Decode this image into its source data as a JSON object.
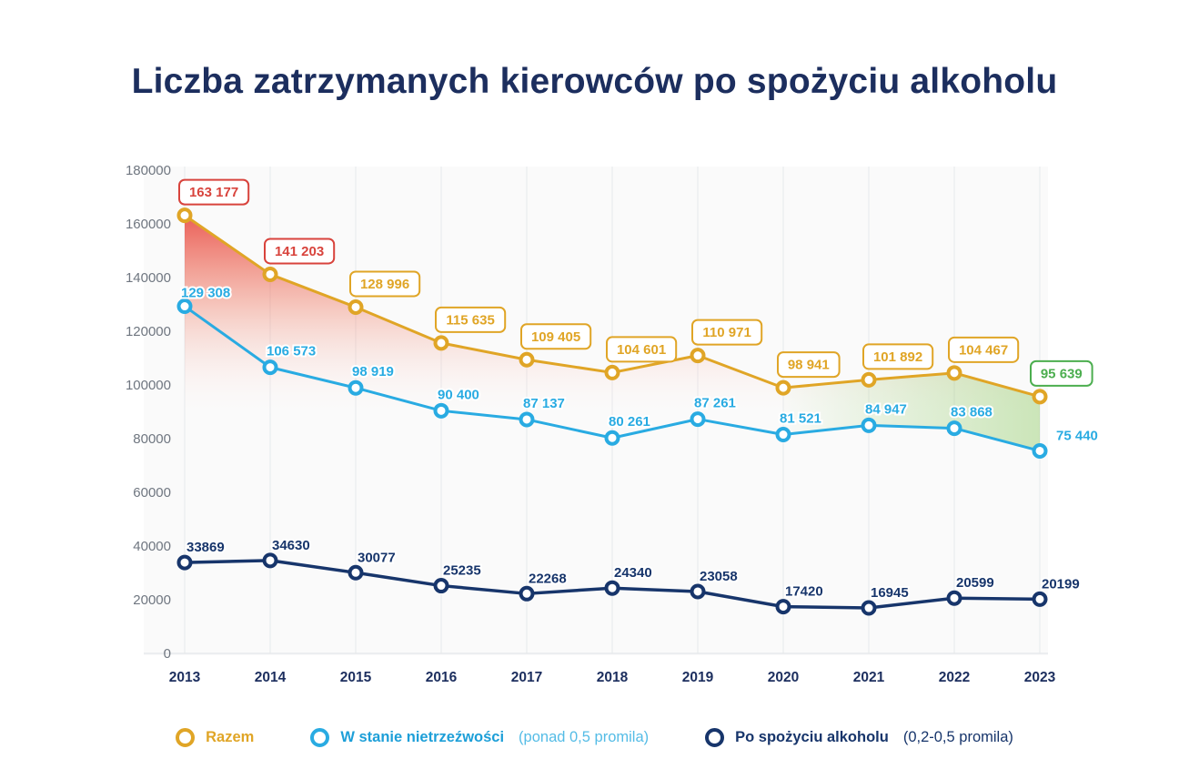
{
  "title": "Liczba zatrzymanych kierowców po spożyciu alkoholu",
  "colors": {
    "title": "#1c2e5e",
    "gold": "#e0a526",
    "blue": "#29abe2",
    "navy": "#17356b",
    "red": "#d8433c",
    "green": "#4cae4f",
    "axis_text": "#6f7680",
    "x_label": "#1c2e5e",
    "grid": "#e7e9ec",
    "plot_bg": "#fafafa"
  },
  "chart_data": {
    "type": "line",
    "title": "Liczba zatrzymanych kierowców po spożyciu alkoholu",
    "x": [
      "2013",
      "2014",
      "2015",
      "2016",
      "2017",
      "2018",
      "2019",
      "2020",
      "2021",
      "2022",
      "2023"
    ],
    "ylim": [
      0,
      180000
    ],
    "ytick_step": 20000,
    "yticks": [
      0,
      20000,
      40000,
      60000,
      80000,
      100000,
      120000,
      140000,
      160000,
      180000
    ],
    "grid": "vertical",
    "legend_position": "bottom",
    "series": [
      {
        "name": "Razem",
        "color": "gold",
        "values": [
          163177,
          141203,
          128996,
          115635,
          109405,
          104601,
          110971,
          98941,
          101892,
          104467,
          95639
        ],
        "labels": [
          "163 177",
          "141 203",
          "128 996",
          "115 635",
          "109 405",
          "104 601",
          "110 971",
          "98 941",
          "101 892",
          "104 467",
          "95 639"
        ],
        "label_style": "boxed",
        "box_colors": [
          "red",
          "red",
          "gold",
          "gold",
          "gold",
          "gold",
          "gold",
          "gold",
          "gold",
          "gold",
          "green"
        ]
      },
      {
        "name": "W stanie nietrzeźwości (ponad 0,5 promila)",
        "color": "blue",
        "values": [
          129308,
          106573,
          98919,
          90400,
          87137,
          80261,
          87261,
          81521,
          84947,
          83868,
          75440
        ],
        "labels": [
          "129 308",
          "106 573",
          "98 919",
          "90 400",
          "87 137",
          "80 261",
          "87 261",
          "81 521",
          "84 947",
          "83 868",
          "75 440"
        ],
        "label_style": "plain"
      },
      {
        "name": "Po spożyciu alkoholu (0,2-0,5 promila)",
        "color": "navy",
        "values": [
          33869,
          34630,
          30077,
          25235,
          22268,
          24340,
          23058,
          17420,
          16945,
          20599,
          20199
        ],
        "labels": [
          "33869",
          "34630",
          "30077",
          "25235",
          "22268",
          "24340",
          "23058",
          "17420",
          "16945",
          "20599",
          "20199"
        ],
        "label_style": "plain"
      }
    ]
  },
  "legend": [
    {
      "label": "Razem",
      "suffix": "",
      "color": "gold"
    },
    {
      "label": "W stanie nietrzeźwości",
      "suffix": "(ponad 0,5 promila)",
      "color": "blue"
    },
    {
      "label": "Po spożyciu alkoholu",
      "suffix": "(0,2-0,5 promila)",
      "color": "navy"
    }
  ]
}
